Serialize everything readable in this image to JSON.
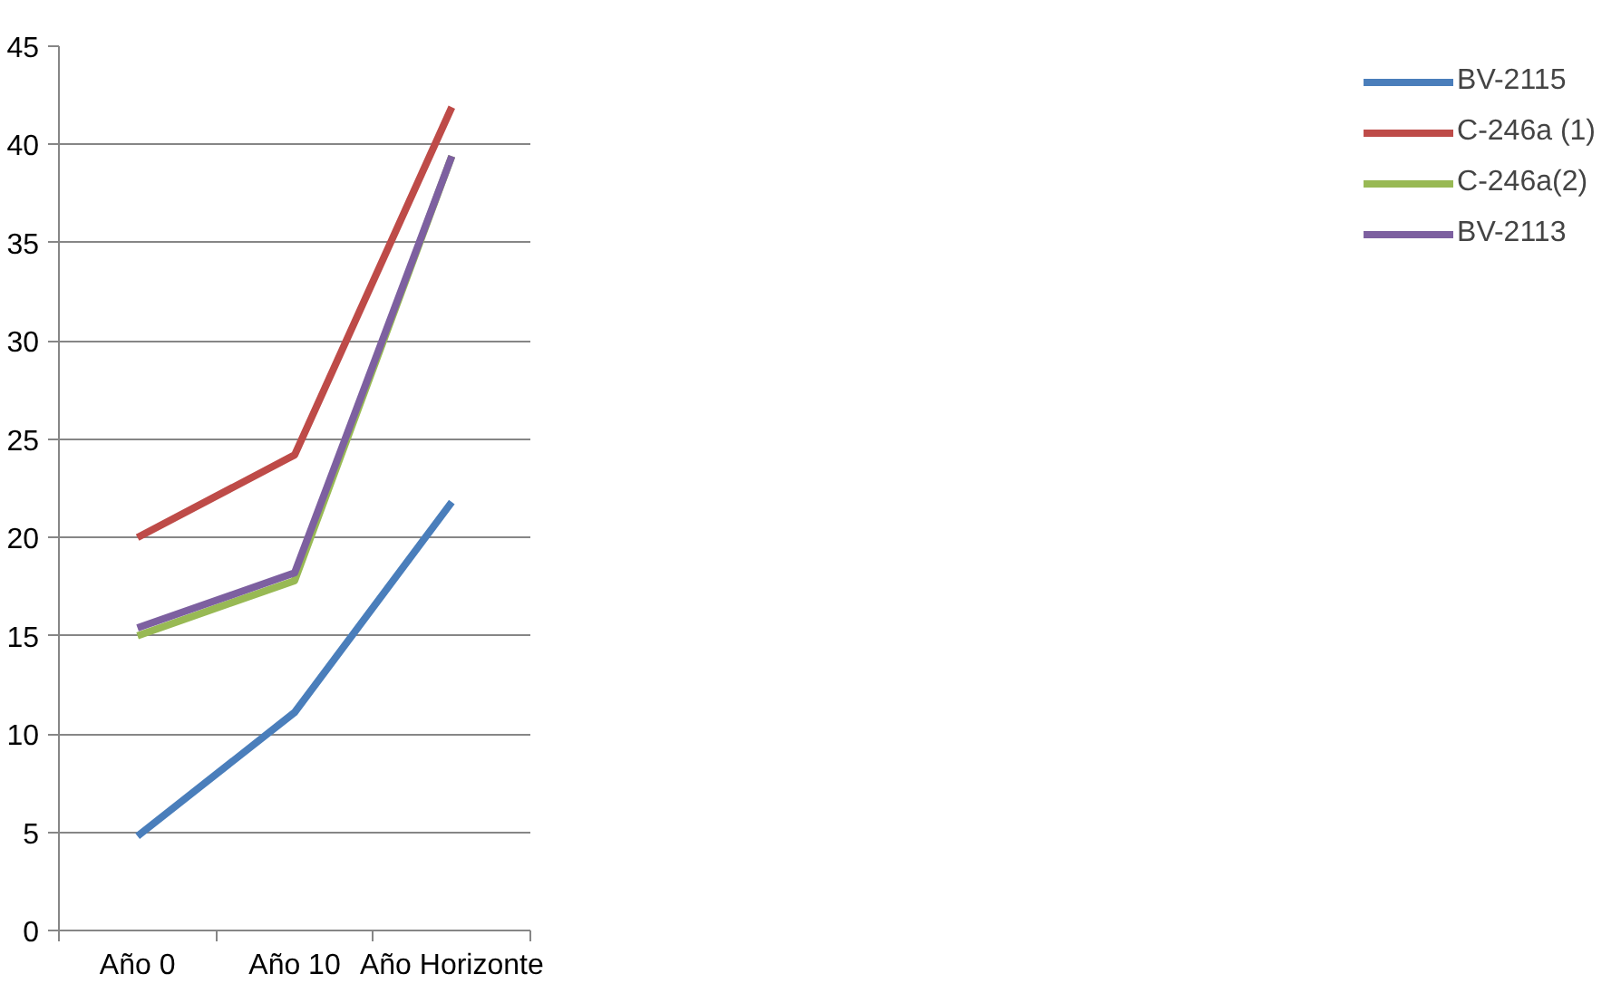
{
  "chart_data": {
    "type": "line",
    "categories": [
      "Año 0",
      "Año 10",
      "Año Horizonte"
    ],
    "series": [
      {
        "name": "BV-2115",
        "color": "#4a7ebb",
        "values": [
          4.8,
          11.1,
          21.8
        ]
      },
      {
        "name": "C-246a (1)",
        "color": "#be4b48",
        "values": [
          20,
          24.2,
          41.9
        ]
      },
      {
        "name": "C-246a(2)",
        "color": "#98b954",
        "values": [
          15,
          17.8,
          39.4
        ]
      },
      {
        "name": "BV-2113",
        "color": "#7d60a0",
        "values": [
          15.4,
          18.2,
          39.4
        ]
      }
    ],
    "ylim": [
      0,
      45
    ],
    "yticks": [
      0,
      5,
      10,
      15,
      20,
      25,
      30,
      35,
      40,
      45
    ],
    "grid": "y",
    "legend": "right",
    "marker": "none",
    "line_style": "solid"
  }
}
